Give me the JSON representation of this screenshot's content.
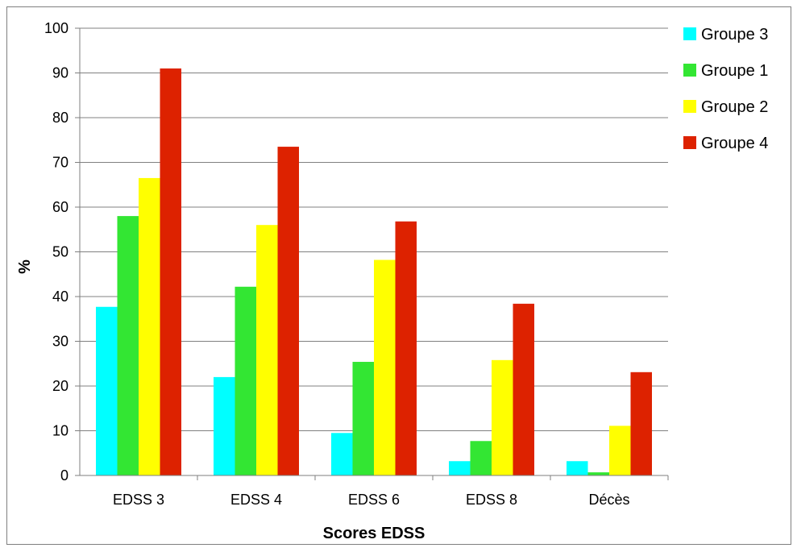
{
  "chart_data": {
    "type": "bar",
    "title": "",
    "xlabel": "Scores EDSS",
    "ylabel": "%",
    "ylim": [
      0,
      100
    ],
    "yticks": [
      "0",
      "10",
      "20",
      "30",
      "40",
      "50",
      "60",
      "70",
      "80",
      "90",
      "100"
    ],
    "grid": true,
    "legend_position": "right",
    "categories": [
      "EDSS 3",
      "EDSS 4",
      "EDSS 6",
      "EDSS 8",
      "Décès"
    ],
    "series": [
      {
        "name": "Groupe 3",
        "color": "#00ffff",
        "values": [
          37.7,
          22.0,
          9.5,
          3.2,
          3.2
        ]
      },
      {
        "name": "Groupe 1",
        "color": "#33e633",
        "values": [
          58.0,
          42.2,
          25.4,
          7.7,
          0.7
        ]
      },
      {
        "name": "Groupe 2",
        "color": "#ffff00",
        "values": [
          66.5,
          56.0,
          48.2,
          25.8,
          11.1
        ]
      },
      {
        "name": "Groupe 4",
        "color": "#dd2200",
        "values": [
          91.0,
          73.5,
          56.8,
          38.4,
          23.1
        ]
      }
    ]
  }
}
